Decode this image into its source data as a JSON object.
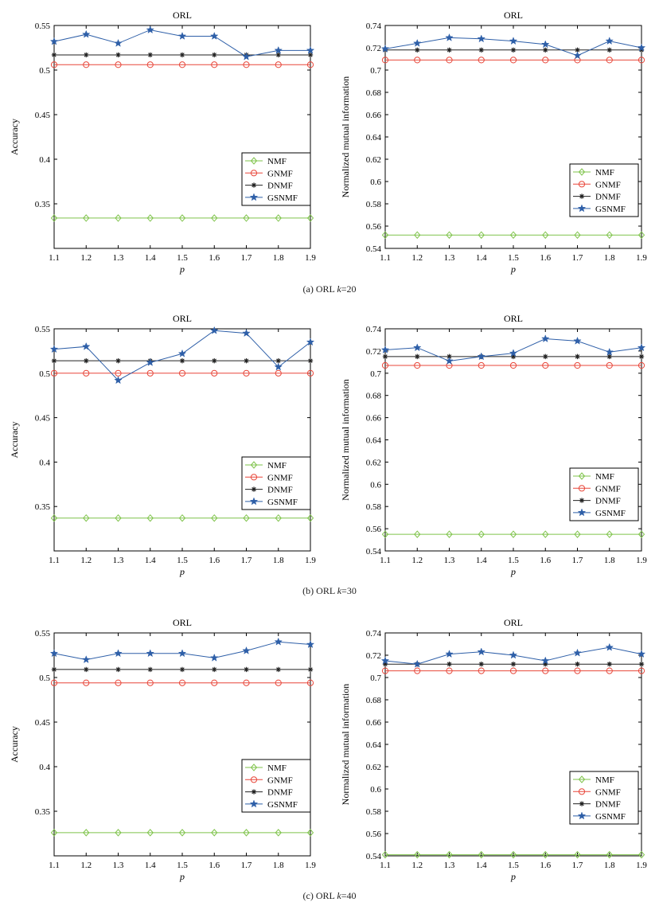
{
  "captions": [
    {
      "label": "(a) ORL ",
      "k": "k",
      "value": "=20"
    },
    {
      "label": "(b) ORL ",
      "k": "k",
      "value": "=30"
    },
    {
      "label": "(c) ORL ",
      "k": "k",
      "value": "=40"
    }
  ],
  "colors": {
    "NMF": "#7fc34b",
    "GNMF": "#e8473a",
    "DNMF": "#222222",
    "GSNMF": "#2e5fa8"
  },
  "chart_data": [
    {
      "type": "line",
      "title": "ORL",
      "xlabel": "p",
      "ylabel": "Accuracy",
      "x": [
        1.1,
        1.2,
        1.3,
        1.4,
        1.5,
        1.6,
        1.7,
        1.8,
        1.9
      ],
      "xlim": [
        1.1,
        1.9
      ],
      "ylim": [
        0.3,
        0.55
      ],
      "yticks": [
        0.35,
        0.4,
        0.45,
        0.5,
        0.55
      ],
      "legend_position": "center-right",
      "series": [
        {
          "name": "NMF",
          "marker": "diamond",
          "values": [
            0.334,
            0.334,
            0.334,
            0.334,
            0.334,
            0.334,
            0.334,
            0.334,
            0.334
          ]
        },
        {
          "name": "GNMF",
          "marker": "circle",
          "values": [
            0.506,
            0.506,
            0.506,
            0.506,
            0.506,
            0.506,
            0.506,
            0.506,
            0.506
          ]
        },
        {
          "name": "DNMF",
          "marker": "asterisk",
          "values": [
            0.517,
            0.517,
            0.517,
            0.517,
            0.517,
            0.517,
            0.517,
            0.517,
            0.517
          ]
        },
        {
          "name": "GSNMF",
          "marker": "star",
          "values": [
            0.532,
            0.54,
            0.53,
            0.545,
            0.538,
            0.538,
            0.515,
            0.522,
            0.522
          ]
        }
      ]
    },
    {
      "type": "line",
      "title": "ORL",
      "xlabel": "p",
      "ylabel": "Normalized mutual information",
      "x": [
        1.1,
        1.2,
        1.3,
        1.4,
        1.5,
        1.6,
        1.7,
        1.8,
        1.9
      ],
      "xlim": [
        1.1,
        1.9
      ],
      "ylim": [
        0.54,
        0.74
      ],
      "yticks": [
        0.54,
        0.56,
        0.58,
        0.6,
        0.62,
        0.64,
        0.66,
        0.68,
        0.7,
        0.72,
        0.74
      ],
      "legend_position": "lower-right",
      "series": [
        {
          "name": "NMF",
          "marker": "diamond",
          "values": [
            0.552,
            0.552,
            0.552,
            0.552,
            0.552,
            0.552,
            0.552,
            0.552,
            0.552
          ]
        },
        {
          "name": "GNMF",
          "marker": "circle",
          "values": [
            0.709,
            0.709,
            0.709,
            0.709,
            0.709,
            0.709,
            0.709,
            0.709,
            0.709
          ]
        },
        {
          "name": "DNMF",
          "marker": "asterisk",
          "values": [
            0.718,
            0.718,
            0.718,
            0.718,
            0.718,
            0.718,
            0.718,
            0.718,
            0.718
          ]
        },
        {
          "name": "GSNMF",
          "marker": "star",
          "values": [
            0.719,
            0.724,
            0.729,
            0.728,
            0.726,
            0.723,
            0.713,
            0.726,
            0.72
          ]
        }
      ]
    },
    {
      "type": "line",
      "title": "ORL",
      "xlabel": "p",
      "ylabel": "Accuracy",
      "x": [
        1.1,
        1.2,
        1.3,
        1.4,
        1.5,
        1.6,
        1.7,
        1.8,
        1.9
      ],
      "xlim": [
        1.1,
        1.9
      ],
      "ylim": [
        0.3,
        0.55
      ],
      "yticks": [
        0.35,
        0.4,
        0.45,
        0.5,
        0.55
      ],
      "legend_position": "center-right",
      "series": [
        {
          "name": "NMF",
          "marker": "diamond",
          "values": [
            0.337,
            0.337,
            0.337,
            0.337,
            0.337,
            0.337,
            0.337,
            0.337,
            0.337
          ]
        },
        {
          "name": "GNMF",
          "marker": "circle",
          "values": [
            0.5,
            0.5,
            0.5,
            0.5,
            0.5,
            0.5,
            0.5,
            0.5,
            0.5
          ]
        },
        {
          "name": "DNMF",
          "marker": "asterisk",
          "values": [
            0.514,
            0.514,
            0.514,
            0.514,
            0.514,
            0.514,
            0.514,
            0.514,
            0.514
          ]
        },
        {
          "name": "GSNMF",
          "marker": "star",
          "values": [
            0.527,
            0.53,
            0.492,
            0.512,
            0.522,
            0.548,
            0.545,
            0.507,
            0.535
          ]
        }
      ]
    },
    {
      "type": "line",
      "title": "ORL",
      "xlabel": "p",
      "ylabel": "Normalized mutual information",
      "x": [
        1.1,
        1.2,
        1.3,
        1.4,
        1.5,
        1.6,
        1.7,
        1.8,
        1.9
      ],
      "xlim": [
        1.1,
        1.9
      ],
      "ylim": [
        0.54,
        0.74
      ],
      "yticks": [
        0.54,
        0.56,
        0.58,
        0.6,
        0.62,
        0.64,
        0.66,
        0.68,
        0.7,
        0.72,
        0.74
      ],
      "legend_position": "lower-right",
      "series": [
        {
          "name": "NMF",
          "marker": "diamond",
          "values": [
            0.555,
            0.555,
            0.555,
            0.555,
            0.555,
            0.555,
            0.555,
            0.555,
            0.555
          ]
        },
        {
          "name": "GNMF",
          "marker": "circle",
          "values": [
            0.707,
            0.707,
            0.707,
            0.707,
            0.707,
            0.707,
            0.707,
            0.707,
            0.707
          ]
        },
        {
          "name": "DNMF",
          "marker": "asterisk",
          "values": [
            0.715,
            0.715,
            0.715,
            0.715,
            0.715,
            0.715,
            0.715,
            0.715,
            0.715
          ]
        },
        {
          "name": "GSNMF",
          "marker": "star",
          "values": [
            0.721,
            0.723,
            0.711,
            0.715,
            0.718,
            0.731,
            0.729,
            0.719,
            0.723
          ]
        }
      ]
    },
    {
      "type": "line",
      "title": "ORL",
      "xlabel": "p",
      "ylabel": "Accuracy",
      "x": [
        1.1,
        1.2,
        1.3,
        1.4,
        1.5,
        1.6,
        1.7,
        1.8,
        1.9
      ],
      "xlim": [
        1.1,
        1.9
      ],
      "ylim": [
        0.3,
        0.55
      ],
      "yticks": [
        0.35,
        0.4,
        0.45,
        0.5,
        0.55
      ],
      "legend_position": "center-right",
      "series": [
        {
          "name": "NMF",
          "marker": "diamond",
          "values": [
            0.326,
            0.326,
            0.326,
            0.326,
            0.326,
            0.326,
            0.326,
            0.326,
            0.326
          ]
        },
        {
          "name": "GNMF",
          "marker": "circle",
          "values": [
            0.494,
            0.494,
            0.494,
            0.494,
            0.494,
            0.494,
            0.494,
            0.494,
            0.494
          ]
        },
        {
          "name": "DNMF",
          "marker": "asterisk",
          "values": [
            0.509,
            0.509,
            0.509,
            0.509,
            0.509,
            0.509,
            0.509,
            0.509,
            0.509
          ]
        },
        {
          "name": "GSNMF",
          "marker": "star",
          "values": [
            0.527,
            0.52,
            0.527,
            0.527,
            0.527,
            0.522,
            0.53,
            0.54,
            0.537
          ]
        }
      ]
    },
    {
      "type": "line",
      "title": "ORL",
      "xlabel": "p",
      "ylabel": "Normalized mutual information",
      "x": [
        1.1,
        1.2,
        1.3,
        1.4,
        1.5,
        1.6,
        1.7,
        1.8,
        1.9
      ],
      "xlim": [
        1.1,
        1.9
      ],
      "ylim": [
        0.54,
        0.74
      ],
      "yticks": [
        0.54,
        0.56,
        0.58,
        0.6,
        0.62,
        0.64,
        0.66,
        0.68,
        0.7,
        0.72,
        0.74
      ],
      "legend_position": "lower-right",
      "series": [
        {
          "name": "NMF",
          "marker": "diamond",
          "values": [
            0.541,
            0.541,
            0.541,
            0.541,
            0.541,
            0.541,
            0.541,
            0.541,
            0.541
          ]
        },
        {
          "name": "GNMF",
          "marker": "circle",
          "values": [
            0.706,
            0.706,
            0.706,
            0.706,
            0.706,
            0.706,
            0.706,
            0.706,
            0.706
          ]
        },
        {
          "name": "DNMF",
          "marker": "asterisk",
          "values": [
            0.712,
            0.712,
            0.712,
            0.712,
            0.712,
            0.712,
            0.712,
            0.712,
            0.712
          ]
        },
        {
          "name": "GSNMF",
          "marker": "star",
          "values": [
            0.715,
            0.712,
            0.721,
            0.723,
            0.72,
            0.715,
            0.722,
            0.727,
            0.721
          ]
        }
      ]
    }
  ]
}
